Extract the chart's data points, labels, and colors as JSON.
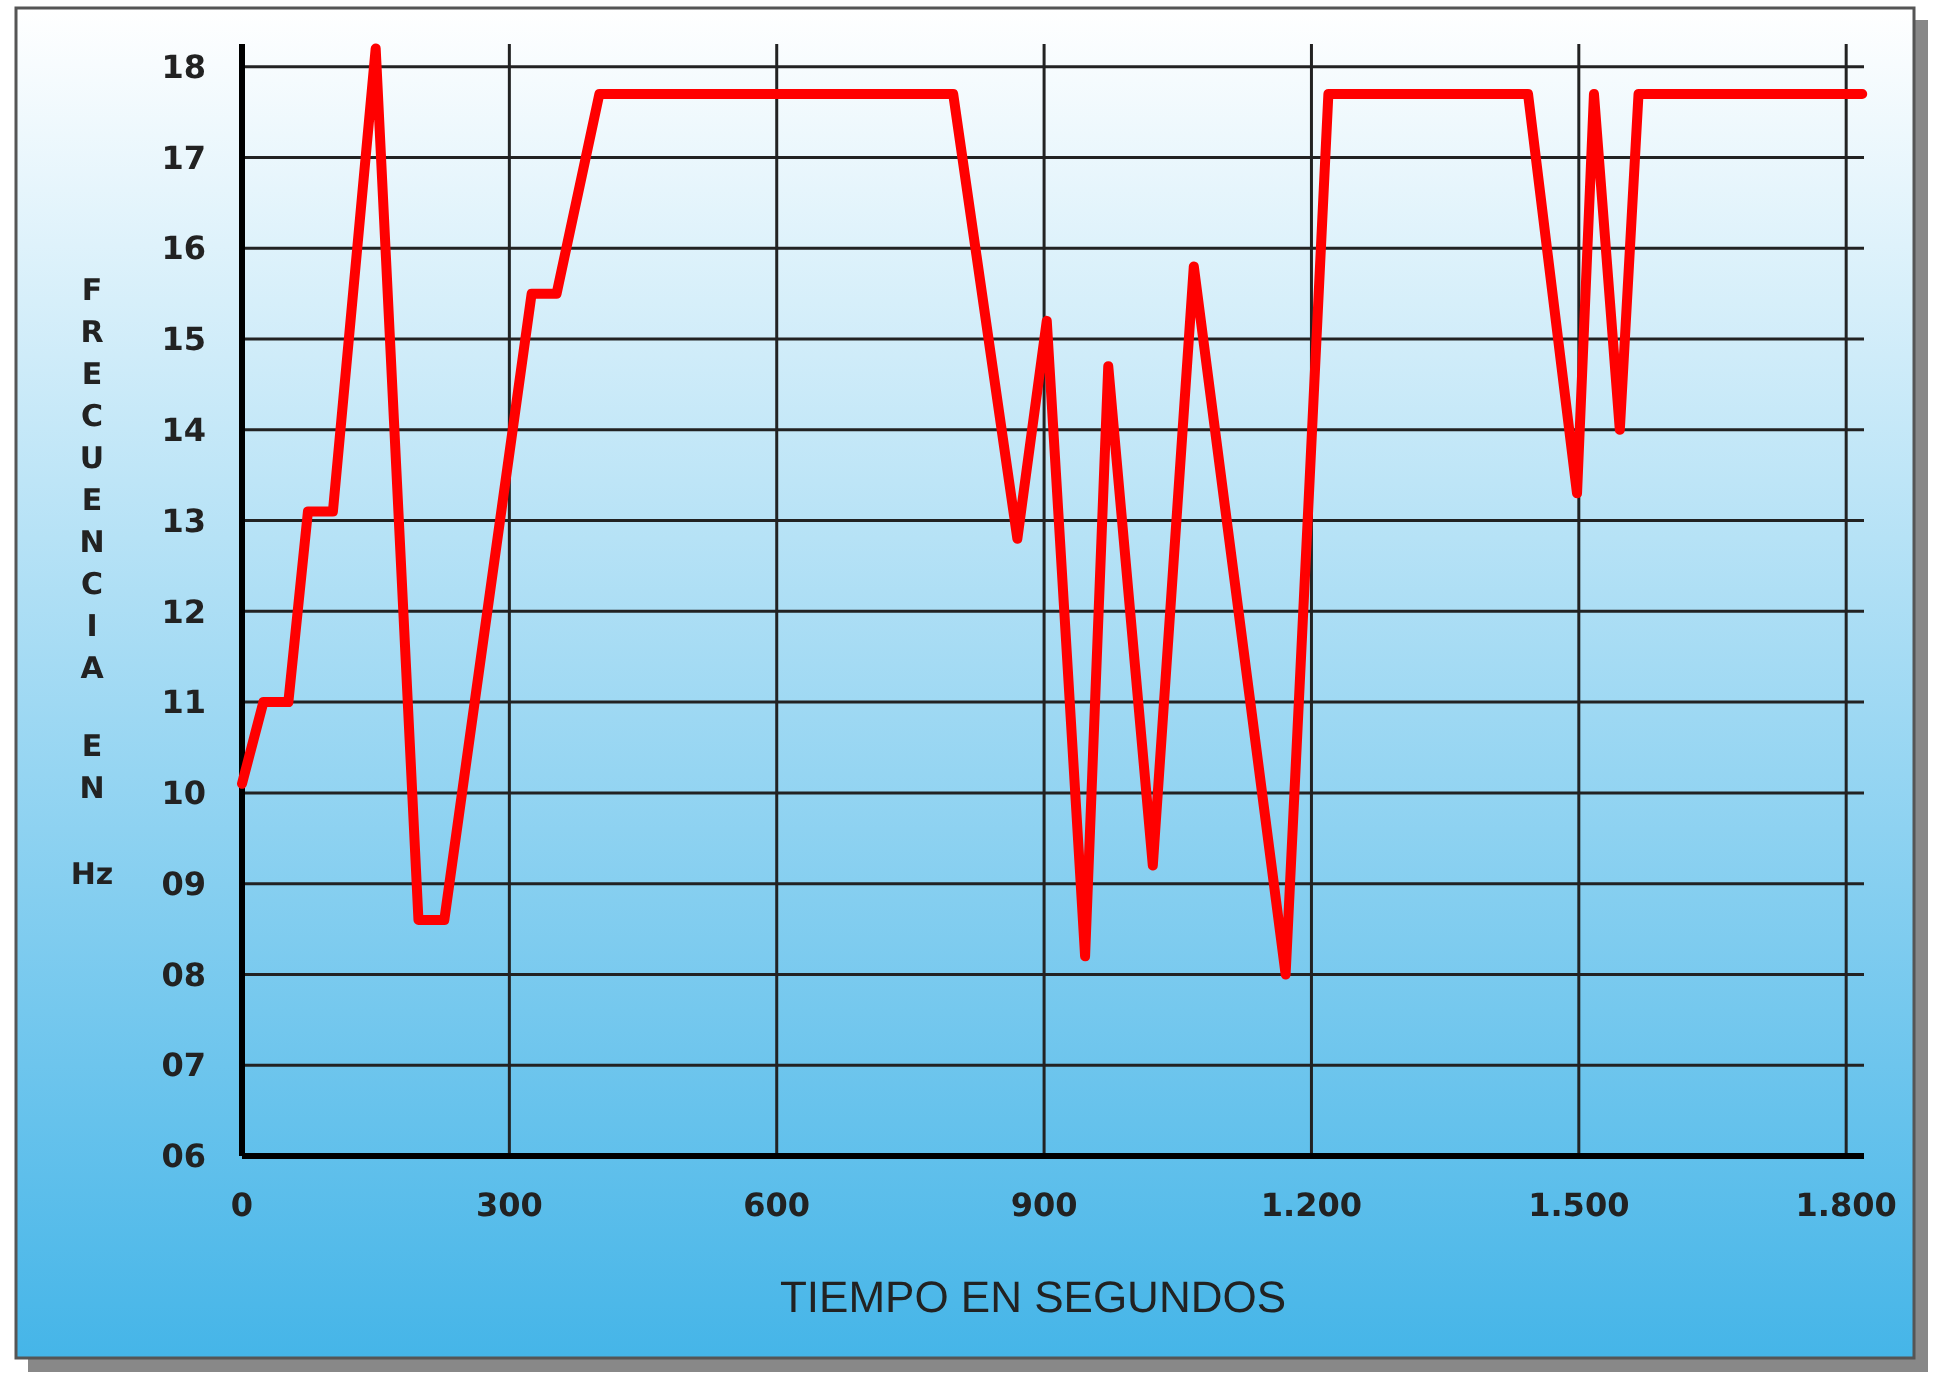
{
  "chart_data": {
    "type": "line",
    "xlabel": "TIEMPO EN SEGUNDOS",
    "ylabel": "FRECUENCIA EN Hz",
    "x": [
      0,
      24,
      52,
      74,
      102,
      150,
      198,
      227,
      325,
      353,
      401,
      798,
      870,
      903,
      946,
      972,
      1022,
      1068,
      1171,
      1219,
      1443,
      1498,
      1517,
      1546,
      1567,
      1818
    ],
    "series": [
      {
        "color": "#ff0000",
        "values": [
          10.1,
          11.0,
          11.0,
          13.1,
          13.1,
          18.2,
          8.6,
          8.6,
          15.5,
          15.5,
          17.7,
          17.7,
          12.8,
          15.2,
          8.2,
          14.7,
          9.2,
          15.8,
          8.0,
          17.7,
          17.7,
          13.3,
          17.7,
          14.0,
          17.7,
          17.7
        ]
      }
    ],
    "xlim": [
      0,
      1820
    ],
    "xticks": [
      0,
      300,
      600,
      900,
      {
        "value": 1200,
        "label": "1.200"
      },
      {
        "value": 1500,
        "label": "1.500"
      },
      {
        "value": 1800,
        "label": "1.800"
      }
    ],
    "ylim": [
      6,
      18.25
    ],
    "yticks": [
      {
        "value": 6,
        "label": "06"
      },
      {
        "value": 7,
        "label": "07"
      },
      {
        "value": 8,
        "label": "08"
      },
      {
        "value": 9,
        "label": "09"
      },
      10,
      11,
      12,
      13,
      14,
      15,
      16,
      17,
      18
    ],
    "grid": true,
    "marker": "none",
    "line_style": "solid"
  }
}
